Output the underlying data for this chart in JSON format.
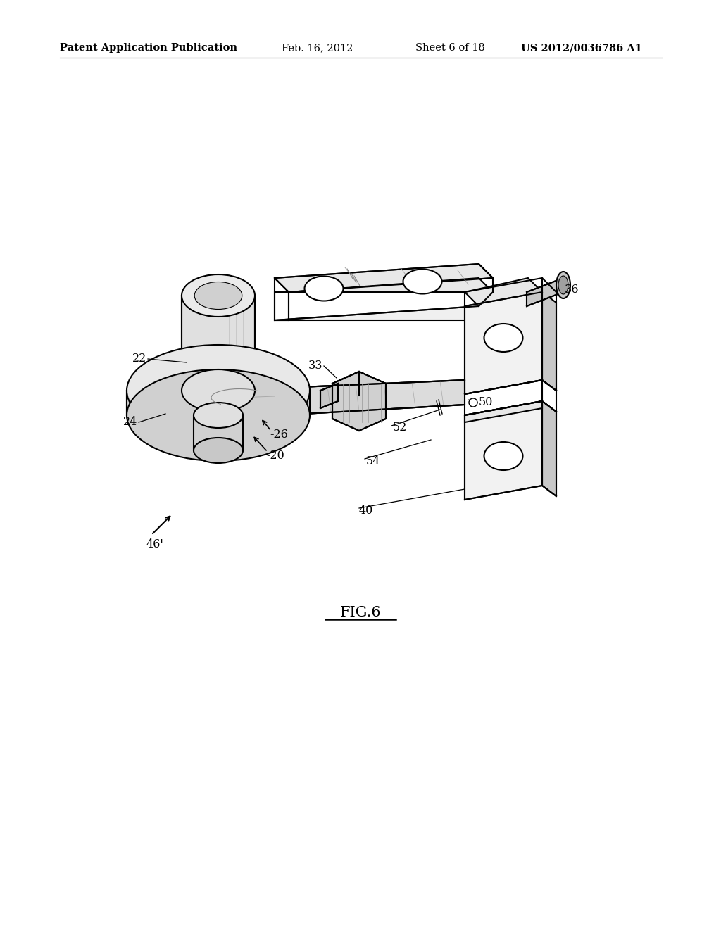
{
  "background_color": "#ffffff",
  "title_line1": "Patent Application Publication",
  "title_date": "Feb. 16, 2012",
  "title_sheet": "Sheet 6 of 18",
  "title_patent": "US 2012/0036786 A1",
  "fig_label": "FIG.6",
  "header_fontsize": 10.5,
  "fig_label_fontsize": 15,
  "label_fontsize": 11.5,
  "line_color": "#000000",
  "line_width": 1.5,
  "light_gray": "#e8e8e8",
  "mid_gray": "#c8c8c8",
  "dark_gray": "#a0a0a0",
  "white": "#ffffff"
}
